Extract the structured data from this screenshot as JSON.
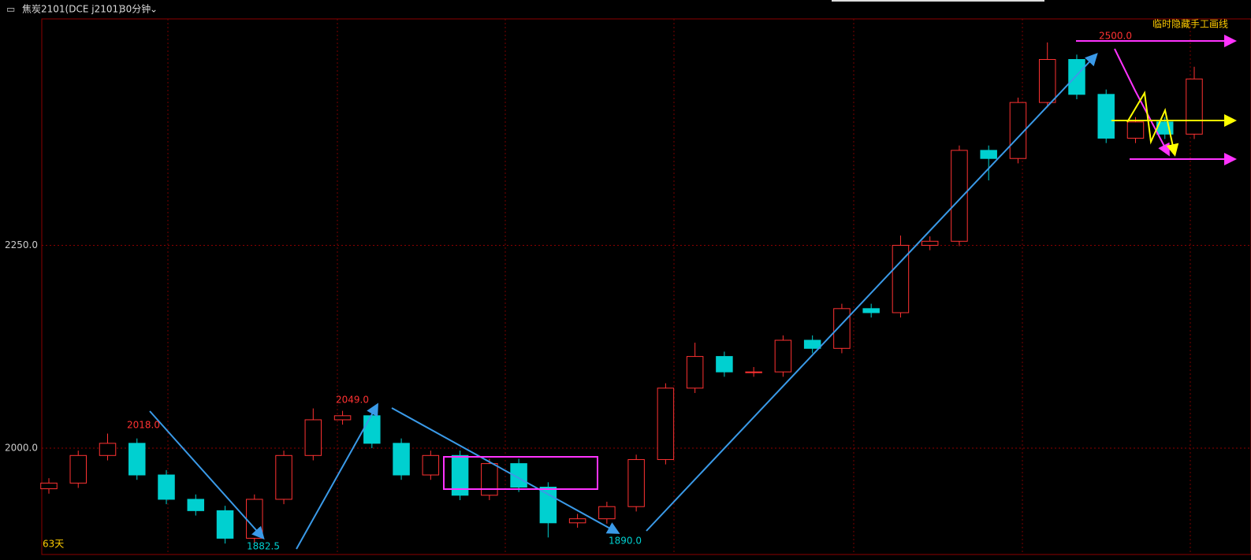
{
  "header": {
    "symbol": "焦炭2101(DCE j2101)",
    "period": "30分钟"
  },
  "chart_data": {
    "type": "candlestick",
    "open": [
      1950,
      1957,
      1991,
      2006,
      1967,
      1937,
      1923,
      1889,
      1937,
      1991,
      2035,
      2040,
      2006,
      1967,
      1991,
      1942,
      1981,
      1952,
      1908,
      1913,
      1928,
      1986,
      2074,
      2113,
      2094,
      2094,
      2133,
      2123,
      2172,
      2167,
      2250,
      2255,
      2367,
      2357,
      2426,
      2479,
      2436,
      2382,
      2402,
      2387
    ],
    "high": [
      1963,
      1997,
      2018,
      2012,
      1973,
      1943,
      1929,
      1943,
      1997,
      2049,
      2046,
      2046,
      2012,
      1997,
      1997,
      1987,
      1987,
      1958,
      1919,
      1934,
      1992,
      2080,
      2130,
      2119,
      2100,
      2139,
      2139,
      2178,
      2178,
      2262,
      2261,
      2373,
      2373,
      2432,
      2500,
      2485,
      2442,
      2408,
      2408,
      2470
    ],
    "low": [
      1944,
      1951,
      1985,
      1961,
      1931,
      1917,
      1882.5,
      1883,
      1931,
      1985,
      2029,
      2000,
      1961,
      1961,
      1936,
      1936,
      1946,
      1890,
      1902,
      1907,
      1922,
      1980,
      2068,
      2088,
      2088,
      2088,
      2117,
      2117,
      2161,
      2161,
      2244,
      2249,
      2330,
      2351,
      2420,
      2430,
      2376,
      2376,
      2381,
      2381
    ],
    "close": [
      1957,
      1991,
      2006,
      1967,
      1937,
      1923,
      1889,
      1937,
      1991,
      2035,
      2040,
      2006,
      1967,
      1991,
      1942,
      1981,
      1952,
      1908,
      1913,
      1928,
      1986,
      2074,
      2113,
      2094,
      2094,
      2133,
      2123,
      2172,
      2167,
      2250,
      2255,
      2367,
      2357,
      2426,
      2479,
      2436,
      2382,
      2402,
      2387,
      2455
    ],
    "up_color": "#ff3232",
    "down_color": "#00d0d0",
    "ylim": [
      1869,
      2529
    ],
    "yticks": [
      {
        "value": 2000,
        "label": "2000.0"
      },
      {
        "value": 2250,
        "label": "2250.0"
      }
    ],
    "grid": true,
    "annotations": {
      "high1": "2018.0",
      "low1": "1882.5",
      "high2": "2049.0",
      "low2": "1890.0",
      "high3": "2500.0",
      "days": "63天",
      "hide_lines": "临时隐藏手工画线"
    }
  }
}
